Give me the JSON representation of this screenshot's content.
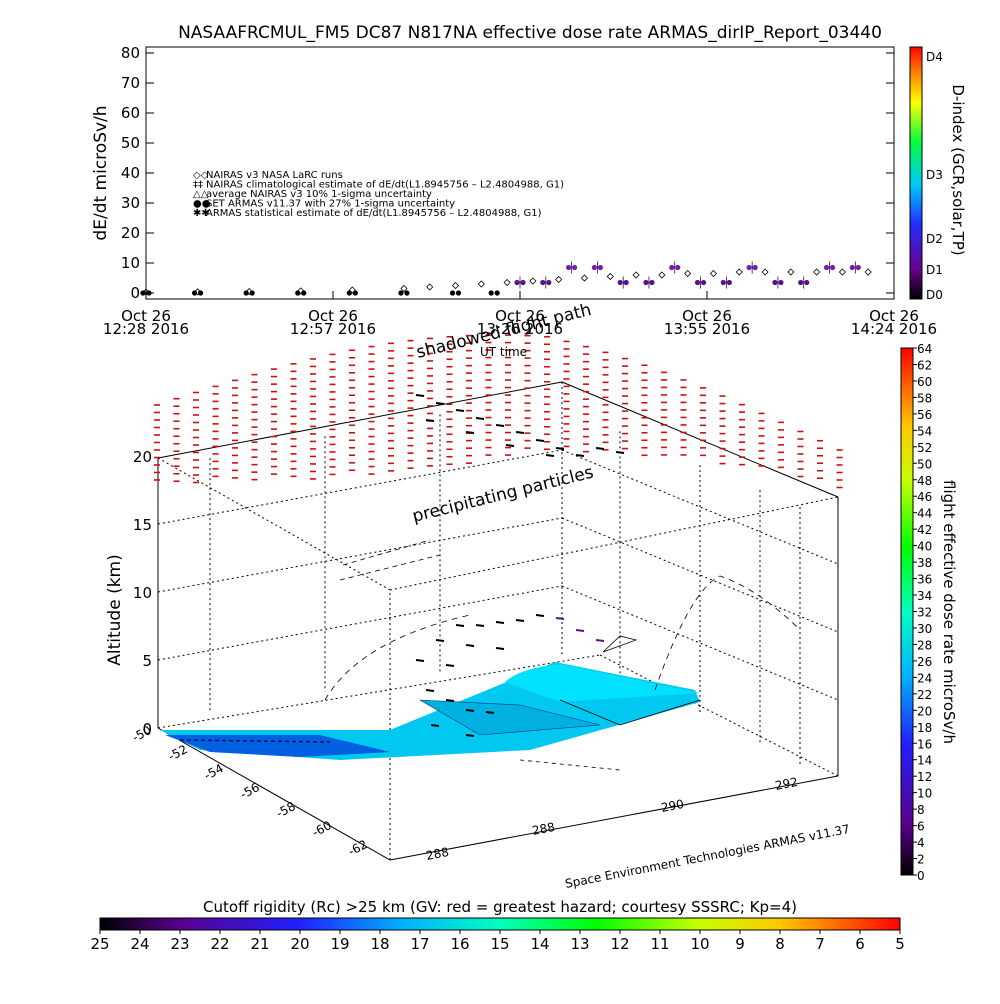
{
  "chart_data": [
    {
      "type": "scatter",
      "title": "NASAAFRCMUL_FM5 DC87 N817NA effective dose rate ARMAS_dirIP_Report_03440",
      "ylabel": "dE/dt microSv/h",
      "xlabel": "UT time",
      "ylim": [
        0,
        80
      ],
      "yticks": [
        "0",
        "10",
        "20",
        "30",
        "40",
        "50",
        "60",
        "70",
        "80"
      ],
      "xticks": [
        {
          "line1": "Oct 26",
          "line2": "12:28 2016"
        },
        {
          "line1": "Oct 26",
          "line2": "12:57 2016"
        },
        {
          "line1": "Oct 26",
          "line2": "13:26 2016"
        },
        {
          "line1": "Oct 26",
          "line2": "13:55 2016"
        },
        {
          "line1": "Oct 26",
          "line2": "14:24 2016"
        }
      ],
      "xlim_minutes": [
        0,
        116
      ],
      "legend": [
        {
          "symbol": "◇",
          "label": "NAIRAS v3 NASA LaRC runs"
        },
        {
          "symbol": "‡",
          "label": "NAIRAS climatological estimate of dE/dt(L1.8945756 – L2.4804988, G1)"
        },
        {
          "symbol": "△",
          "label": "average NAIRAS v3 10% 1-sigma uncertainty"
        },
        {
          "symbol": "●",
          "label": "SET ARMAS v11.37 with 27% 1-sigma uncertainty"
        },
        {
          "symbol": "✱",
          "label": "ARMAS statistical estimate of dE/dt(L1.8945756 – L2.4804988, G1)"
        }
      ],
      "series": [
        {
          "name": "NAIRAS v3 NASA LaRC runs",
          "x": [
            0,
            8,
            16,
            24,
            32,
            40,
            44,
            48,
            52,
            56,
            60,
            64,
            68,
            72,
            76,
            80,
            84,
            88,
            92,
            96,
            100,
            104,
            108,
            112
          ],
          "y": [
            0.3,
            0.4,
            0.5,
            0.7,
            1,
            1.5,
            2,
            2.5,
            3,
            3.5,
            4,
            4.5,
            5,
            5.5,
            6,
            6,
            6.5,
            6.5,
            7,
            7,
            7,
            7,
            7,
            7
          ]
        },
        {
          "name": "SET ARMAS v11.37 with 27% 1-sigma uncertainty",
          "x": [
            0,
            8,
            16,
            24,
            32,
            40,
            48,
            54,
            58,
            62,
            66,
            70,
            74,
            78,
            82,
            86,
            90,
            94,
            98,
            102,
            106,
            110
          ],
          "y": [
            0,
            0,
            0,
            0,
            0,
            0,
            0,
            0,
            3.5,
            3.5,
            8.5,
            8.5,
            3.5,
            3.5,
            8.5,
            3.5,
            3.5,
            8.5,
            3.5,
            3.5,
            8.5,
            8.5
          ]
        }
      ],
      "d_index_colorbar": {
        "label": "D-index (GCR,solar,TP)",
        "ticks": [
          "D0",
          "D1",
          "D2",
          "D3",
          "D4"
        ]
      }
    },
    {
      "type": "scatter",
      "title": "",
      "zlabel": "Altitude (km)",
      "zticks": [
        "0",
        "5",
        "10",
        "15",
        "20"
      ],
      "lat_ticks": [
        "-50",
        "-52",
        "-54",
        "-56",
        "-58",
        "-60",
        "-62"
      ],
      "lon_ticks": [
        "288",
        "288",
        "290",
        "292"
      ],
      "annotations": [
        "shadowed flight path",
        "precipitating particles",
        "UT time"
      ],
      "credit": "Space Environment Technologies ARMAS v11.37",
      "dose_colorbar": {
        "label": "flight effective dose rate microSv/h",
        "ticks": [
          "0",
          "2",
          "4",
          "6",
          "8",
          "10",
          "12",
          "14",
          "16",
          "18",
          "20",
          "22",
          "24",
          "26",
          "28",
          "30",
          "32",
          "34",
          "36",
          "38",
          "40",
          "42",
          "44",
          "46",
          "48",
          "50",
          "52",
          "54",
          "56",
          "58",
          "60",
          "62",
          "64"
        ]
      },
      "cutoff_colorbar": {
        "label": "Cutoff rigidity (Rc) >25 km (GV: red = greatest hazard; courtesy SSSRC; Kp=4)",
        "ticks": [
          "25",
          "24",
          "23",
          "22",
          "21",
          "20",
          "19",
          "18",
          "17",
          "16",
          "15",
          "14",
          "13",
          "12",
          "11",
          "10",
          "9",
          "8",
          "7",
          "6",
          "5"
        ]
      }
    }
  ]
}
